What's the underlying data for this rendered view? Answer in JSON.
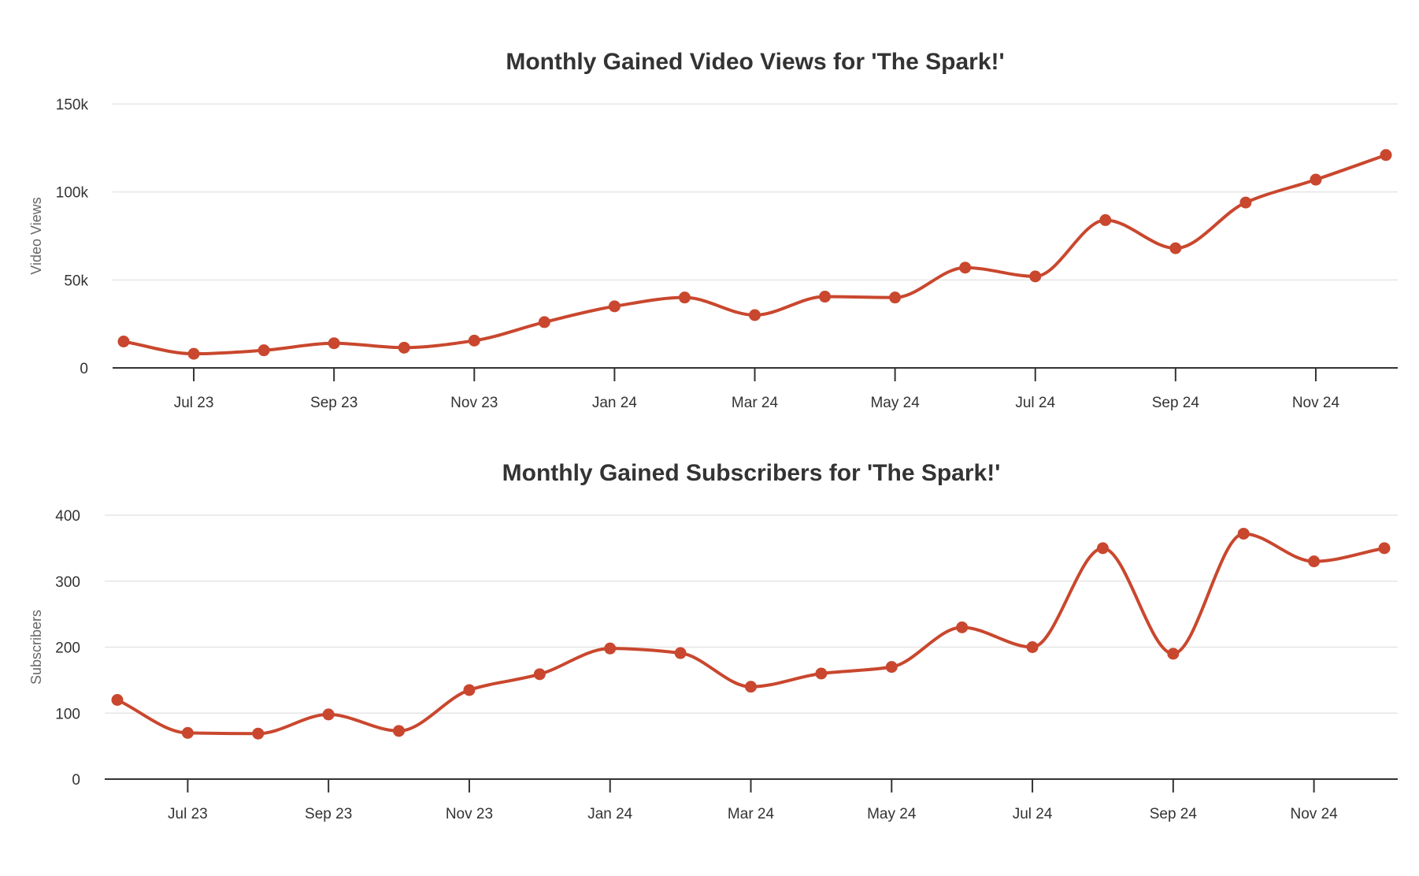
{
  "accent_color": "#C9472E",
  "chart_data": [
    {
      "type": "line",
      "title": "Monthly Gained Video Views for 'The Spark!'",
      "xlabel": "",
      "ylabel": "Video Views",
      "ylim": [
        0,
        150000
      ],
      "yticks": [
        0,
        50000,
        100000,
        150000
      ],
      "ytick_labels": [
        "0",
        "50k",
        "100k",
        "150k"
      ],
      "grid": true,
      "x_tick_labels": [
        "Jul 23",
        "Sep 23",
        "Nov 23",
        "Jan 24",
        "Mar 24",
        "May 24",
        "Jul 24",
        "Sep 24",
        "Nov 24"
      ],
      "x": [
        "Jun 23",
        "Jul 23",
        "Aug 23",
        "Sep 23",
        "Oct 23",
        "Nov 23",
        "Dec 23",
        "Jan 24",
        "Feb 24",
        "Mar 24",
        "Apr 24",
        "May 24",
        "Jun 24",
        "Jul 24",
        "Aug 24",
        "Sep 24",
        "Oct 24",
        "Nov 24",
        "Dec 24"
      ],
      "series": [
        {
          "values": [
            15000,
            8000,
            10000,
            14000,
            11500,
            15500,
            26000,
            35000,
            40000,
            30000,
            40500,
            40000,
            57000,
            52000,
            84000,
            68000,
            94000,
            107000,
            121000
          ]
        }
      ]
    },
    {
      "type": "line",
      "title": "Monthly Gained Subscribers for 'The Spark!'",
      "xlabel": "",
      "ylabel": "Subscribers",
      "ylim": [
        0,
        400
      ],
      "yticks": [
        0,
        100,
        200,
        300,
        400
      ],
      "ytick_labels": [
        "0",
        "100",
        "200",
        "300",
        "400"
      ],
      "grid": true,
      "x_tick_labels": [
        "Jul 23",
        "Sep 23",
        "Nov 23",
        "Jan 24",
        "Mar 24",
        "May 24",
        "Jul 24",
        "Sep 24",
        "Nov 24"
      ],
      "x": [
        "Jun 23",
        "Jul 23",
        "Aug 23",
        "Sep 23",
        "Oct 23",
        "Nov 23",
        "Dec 23",
        "Jan 24",
        "Feb 24",
        "Mar 24",
        "Apr 24",
        "May 24",
        "Jun 24",
        "Jul 24",
        "Aug 24",
        "Sep 24",
        "Oct 24",
        "Nov 24",
        "Dec 24"
      ],
      "series": [
        {
          "values": [
            120,
            70,
            69,
            98,
            73,
            135,
            159,
            198,
            191,
            140,
            160,
            170,
            230,
            200,
            350,
            190,
            372,
            330,
            350
          ]
        }
      ]
    }
  ]
}
